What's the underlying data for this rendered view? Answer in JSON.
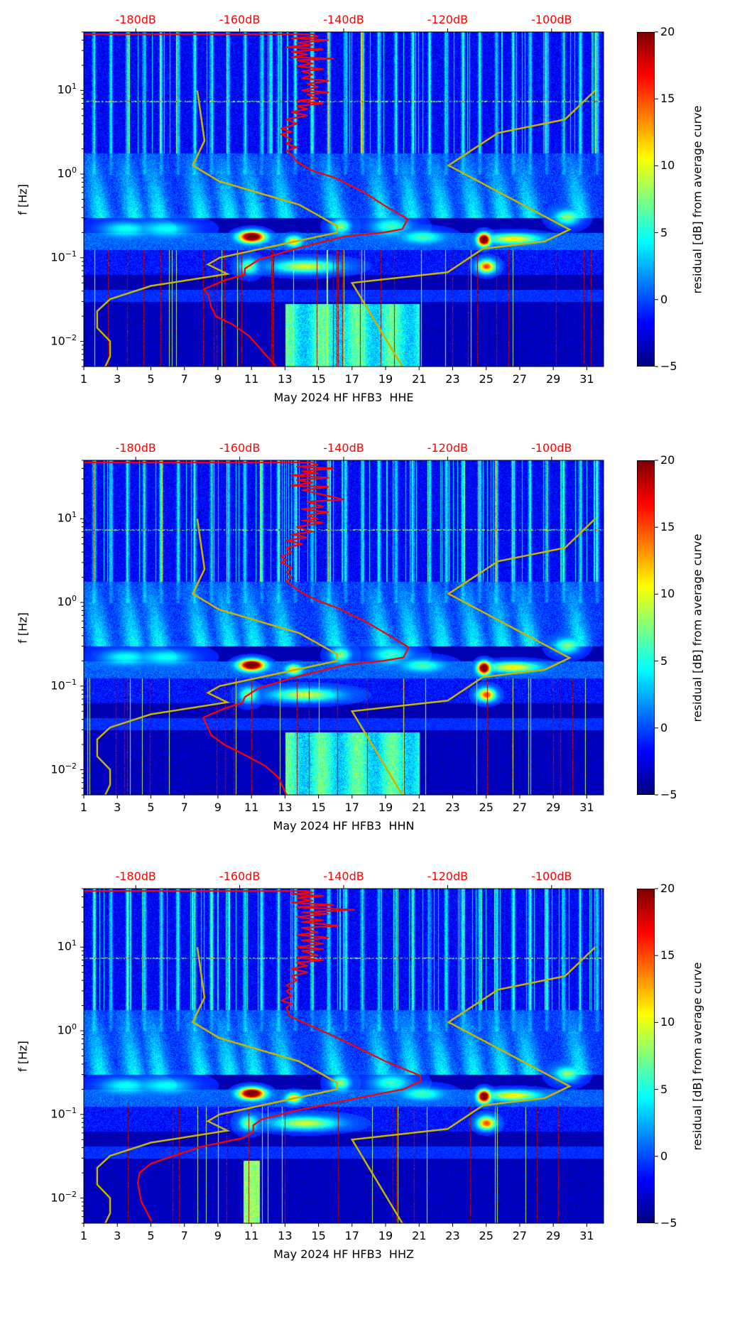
{
  "chart_data": {
    "type": "heatmap",
    "xlim": [
      1,
      32
    ],
    "ylim": [
      0.005,
      50
    ],
    "yscale": "log",
    "top_axis_db_range": [
      -190,
      -90
    ],
    "clim": [
      -5,
      20
    ],
    "colormap": "jet",
    "ylabel": "f [Hz]",
    "colorbar_label": "residual [dB] from average curve",
    "xticks": [
      "1",
      "3",
      "5",
      "7",
      "9",
      "11",
      "13",
      "15",
      "17",
      "19",
      "21",
      "23",
      "25",
      "27",
      "29",
      "31"
    ],
    "xtick_values": [
      1,
      3,
      5,
      7,
      9,
      11,
      13,
      15,
      17,
      19,
      21,
      23,
      25,
      27,
      29,
      31
    ],
    "yticks": [
      {
        "base": "10",
        "exp": "1",
        "value": 10
      },
      {
        "base": "10",
        "exp": "0",
        "value": 1
      },
      {
        "base": "10",
        "exp": "−1",
        "value": 0.1
      },
      {
        "base": "10",
        "exp": "−2",
        "value": 0.01
      }
    ],
    "top_ticks": [
      {
        "label": "-180dB",
        "value": -180
      },
      {
        "label": "-160dB",
        "value": -160
      },
      {
        "label": "-140dB",
        "value": -140
      },
      {
        "label": "-120dB",
        "value": -120
      },
      {
        "label": "-100dB",
        "value": -100
      }
    ],
    "colorbar_ticks": [
      {
        "label": "20",
        "value": 20
      },
      {
        "label": "15",
        "value": 15
      },
      {
        "label": "10",
        "value": 10
      },
      {
        "label": "5",
        "value": 5
      },
      {
        "label": "0",
        "value": 0
      },
      {
        "label": "−5",
        "value": -5
      }
    ],
    "colors": {
      "model_curve": "#c8b400",
      "average_curve": "#ff0000",
      "db_labels": "#ff0000"
    },
    "model_curves_day_hz": [
      [
        [
          7.77,
          10
        ],
        [
          8.2,
          2.5
        ],
        [
          7.5,
          1.27
        ],
        [
          9.08,
          0.82
        ],
        [
          13.85,
          0.43
        ],
        [
          16.1,
          0.24
        ],
        [
          16.1,
          0.2
        ],
        [
          9.1,
          0.1
        ],
        [
          8.4,
          0.083
        ],
        [
          9.56,
          0.064
        ],
        [
          5.0,
          0.046
        ],
        [
          2.57,
          0.032
        ],
        [
          1.8,
          0.023
        ],
        [
          1.8,
          0.0145
        ],
        [
          2.57,
          0.01
        ],
        [
          2.57,
          0.0066
        ],
        [
          2.28,
          0.005
        ]
      ],
      [
        [
          20.0,
          0.005
        ],
        [
          17.0,
          0.05
        ],
        [
          22.7,
          0.067
        ],
        [
          24.8,
          0.128
        ],
        [
          28.5,
          0.157
        ],
        [
          29.97,
          0.217
        ],
        [
          22.75,
          1.27
        ],
        [
          25.7,
          3.1
        ],
        [
          29.7,
          4.5
        ],
        [
          31.5,
          10
        ]
      ]
    ],
    "panels": [
      {
        "xlabel": "May 2024 HF HFB3  HHE",
        "low_freq_bright_days": [
          13,
          21
        ],
        "average_curve_db_hz": [
          [
            -190,
            47
          ],
          [
            -146,
            47
          ],
          [
            -145,
            44
          ],
          [
            -150,
            42
          ],
          [
            -143,
            40
          ],
          [
            -149,
            37
          ],
          [
            -146,
            35
          ],
          [
            -151,
            33
          ],
          [
            -144,
            31
          ],
          [
            -150,
            29
          ],
          [
            -147,
            27
          ],
          [
            -150,
            25
          ],
          [
            -142,
            24
          ],
          [
            -149,
            23
          ],
          [
            -146,
            21
          ],
          [
            -149,
            19.5
          ],
          [
            -144,
            18
          ],
          [
            -148,
            17
          ],
          [
            -146,
            15.5
          ],
          [
            -148,
            14
          ],
          [
            -143,
            13
          ],
          [
            -147,
            12
          ],
          [
            -145,
            11
          ],
          [
            -148,
            10
          ],
          [
            -143,
            9.5
          ],
          [
            -147,
            9
          ],
          [
            -145,
            8
          ],
          [
            -149,
            7.5
          ],
          [
            -144,
            7
          ],
          [
            -149,
            6.5
          ],
          [
            -147,
            6
          ],
          [
            -150,
            5.5
          ],
          [
            -147,
            5
          ],
          [
            -151,
            4.5
          ],
          [
            -149,
            4
          ],
          [
            -152,
            3.5
          ],
          [
            -150,
            3.2
          ],
          [
            -152,
            3
          ],
          [
            -150,
            2.6
          ],
          [
            -151,
            2.3
          ],
          [
            -149,
            2.1
          ],
          [
            -151,
            1.9
          ],
          [
            -150,
            1.7
          ],
          [
            -149,
            1.4
          ],
          [
            -146,
            1.1
          ],
          [
            -141.6,
            0.9
          ],
          [
            -136,
            0.6
          ],
          [
            -132.4,
            0.43
          ],
          [
            -127.7,
            0.29
          ],
          [
            -128.7,
            0.22
          ],
          [
            -132.4,
            0.2
          ],
          [
            -139.7,
            0.18
          ],
          [
            -148.9,
            0.13
          ],
          [
            -156.3,
            0.095
          ],
          [
            -159,
            0.074
          ],
          [
            -159,
            0.063
          ],
          [
            -162.8,
            0.054
          ],
          [
            -166.9,
            0.042
          ],
          [
            -166,
            0.036
          ],
          [
            -165.5,
            0.026
          ],
          [
            -164.6,
            0.02
          ],
          [
            -161.4,
            0.016
          ],
          [
            -158.2,
            0.0116
          ],
          [
            -155.9,
            0.008
          ],
          [
            -153,
            0.005
          ]
        ]
      },
      {
        "xlabel": "May 2024 HF HFB3  HHN",
        "low_freq_bright_days": [
          13,
          21
        ],
        "average_curve_db_hz": [
          [
            -190,
            47
          ],
          [
            -146,
            47
          ],
          [
            -145,
            44
          ],
          [
            -149,
            42
          ],
          [
            -142,
            40
          ],
          [
            -148,
            37
          ],
          [
            -145,
            35
          ],
          [
            -150,
            33
          ],
          [
            -143,
            31
          ],
          [
            -149,
            29
          ],
          [
            -146,
            27
          ],
          [
            -150,
            25
          ],
          [
            -143,
            24
          ],
          [
            -148,
            22
          ],
          [
            -145,
            20
          ],
          [
            -140,
            17
          ],
          [
            -147,
            16
          ],
          [
            -144,
            14
          ],
          [
            -148,
            13
          ],
          [
            -143,
            12
          ],
          [
            -147,
            11
          ],
          [
            -145,
            10
          ],
          [
            -148,
            9.5
          ],
          [
            -144,
            9
          ],
          [
            -149,
            8
          ],
          [
            -146,
            7
          ],
          [
            -150,
            6.5
          ],
          [
            -147,
            6
          ],
          [
            -151,
            5.5
          ],
          [
            -148,
            5
          ],
          [
            -151,
            4.5
          ],
          [
            -150,
            4
          ],
          [
            -152,
            3.5
          ],
          [
            -151,
            3.2
          ],
          [
            -152,
            3
          ],
          [
            -150,
            2.6
          ],
          [
            -151,
            2.3
          ],
          [
            -150,
            2.0
          ],
          [
            -151,
            1.8
          ],
          [
            -150,
            1.6
          ],
          [
            -148,
            1.3
          ],
          [
            -145,
            1.05
          ],
          [
            -141,
            0.85
          ],
          [
            -136,
            0.6
          ],
          [
            -132,
            0.43
          ],
          [
            -127.5,
            0.29
          ],
          [
            -128.5,
            0.22
          ],
          [
            -132.4,
            0.2
          ],
          [
            -139.7,
            0.18
          ],
          [
            -148.9,
            0.13
          ],
          [
            -156.3,
            0.095
          ],
          [
            -159,
            0.074
          ],
          [
            -159.5,
            0.063
          ],
          [
            -163,
            0.054
          ],
          [
            -167,
            0.042
          ],
          [
            -166.5,
            0.036
          ],
          [
            -165.5,
            0.026
          ],
          [
            -163,
            0.02
          ],
          [
            -159,
            0.015
          ],
          [
            -155,
            0.011
          ],
          [
            -152.5,
            0.008
          ],
          [
            -151,
            0.005
          ]
        ]
      },
      {
        "xlabel": "May 2024 HF HFB3  HHZ",
        "low_freq_bright_days": null,
        "average_curve_db_hz": [
          [
            -190,
            47
          ],
          [
            -147,
            47
          ],
          [
            -146,
            45
          ],
          [
            -150,
            43
          ],
          [
            -144,
            41
          ],
          [
            -149,
            39
          ],
          [
            -146,
            36
          ],
          [
            -150,
            34
          ],
          [
            -142,
            32
          ],
          [
            -149,
            30
          ],
          [
            -138,
            28
          ],
          [
            -148,
            26
          ],
          [
            -143,
            25
          ],
          [
            -149,
            23
          ],
          [
            -144,
            21
          ],
          [
            -148,
            20
          ],
          [
            -141,
            18
          ],
          [
            -148,
            17
          ],
          [
            -145,
            15
          ],
          [
            -149,
            14
          ],
          [
            -143,
            13
          ],
          [
            -148,
            12
          ],
          [
            -144,
            11
          ],
          [
            -149,
            10
          ],
          [
            -144,
            9.5
          ],
          [
            -148,
            9
          ],
          [
            -145,
            8
          ],
          [
            -149,
            7.5
          ],
          [
            -144,
            7
          ],
          [
            -149,
            6.5
          ],
          [
            -147,
            6
          ],
          [
            -150,
            5.5
          ],
          [
            -147,
            5
          ],
          [
            -150,
            4.5
          ],
          [
            -149,
            4
          ],
          [
            -151,
            3.5
          ],
          [
            -150,
            3.2
          ],
          [
            -151,
            3
          ],
          [
            -150,
            2.6
          ],
          [
            -152,
            2.3
          ],
          [
            -150,
            2.1
          ],
          [
            -151,
            1.9
          ],
          [
            -150.4,
            1.5
          ],
          [
            -141.3,
            0.83
          ],
          [
            -131.9,
            0.43
          ],
          [
            -125.2,
            0.29
          ],
          [
            -125.2,
            0.25
          ],
          [
            -128.5,
            0.2
          ],
          [
            -137.3,
            0.157
          ],
          [
            -148.7,
            0.113
          ],
          [
            -155.8,
            0.087
          ],
          [
            -157.4,
            0.074
          ],
          [
            -157.4,
            0.061
          ],
          [
            -159.5,
            0.052
          ],
          [
            -167.5,
            0.041
          ],
          [
            -177,
            0.026
          ],
          [
            -179.3,
            0.02
          ],
          [
            -179.6,
            0.015
          ],
          [
            -179,
            0.0093
          ],
          [
            -177,
            0.0053
          ]
        ]
      }
    ]
  }
}
